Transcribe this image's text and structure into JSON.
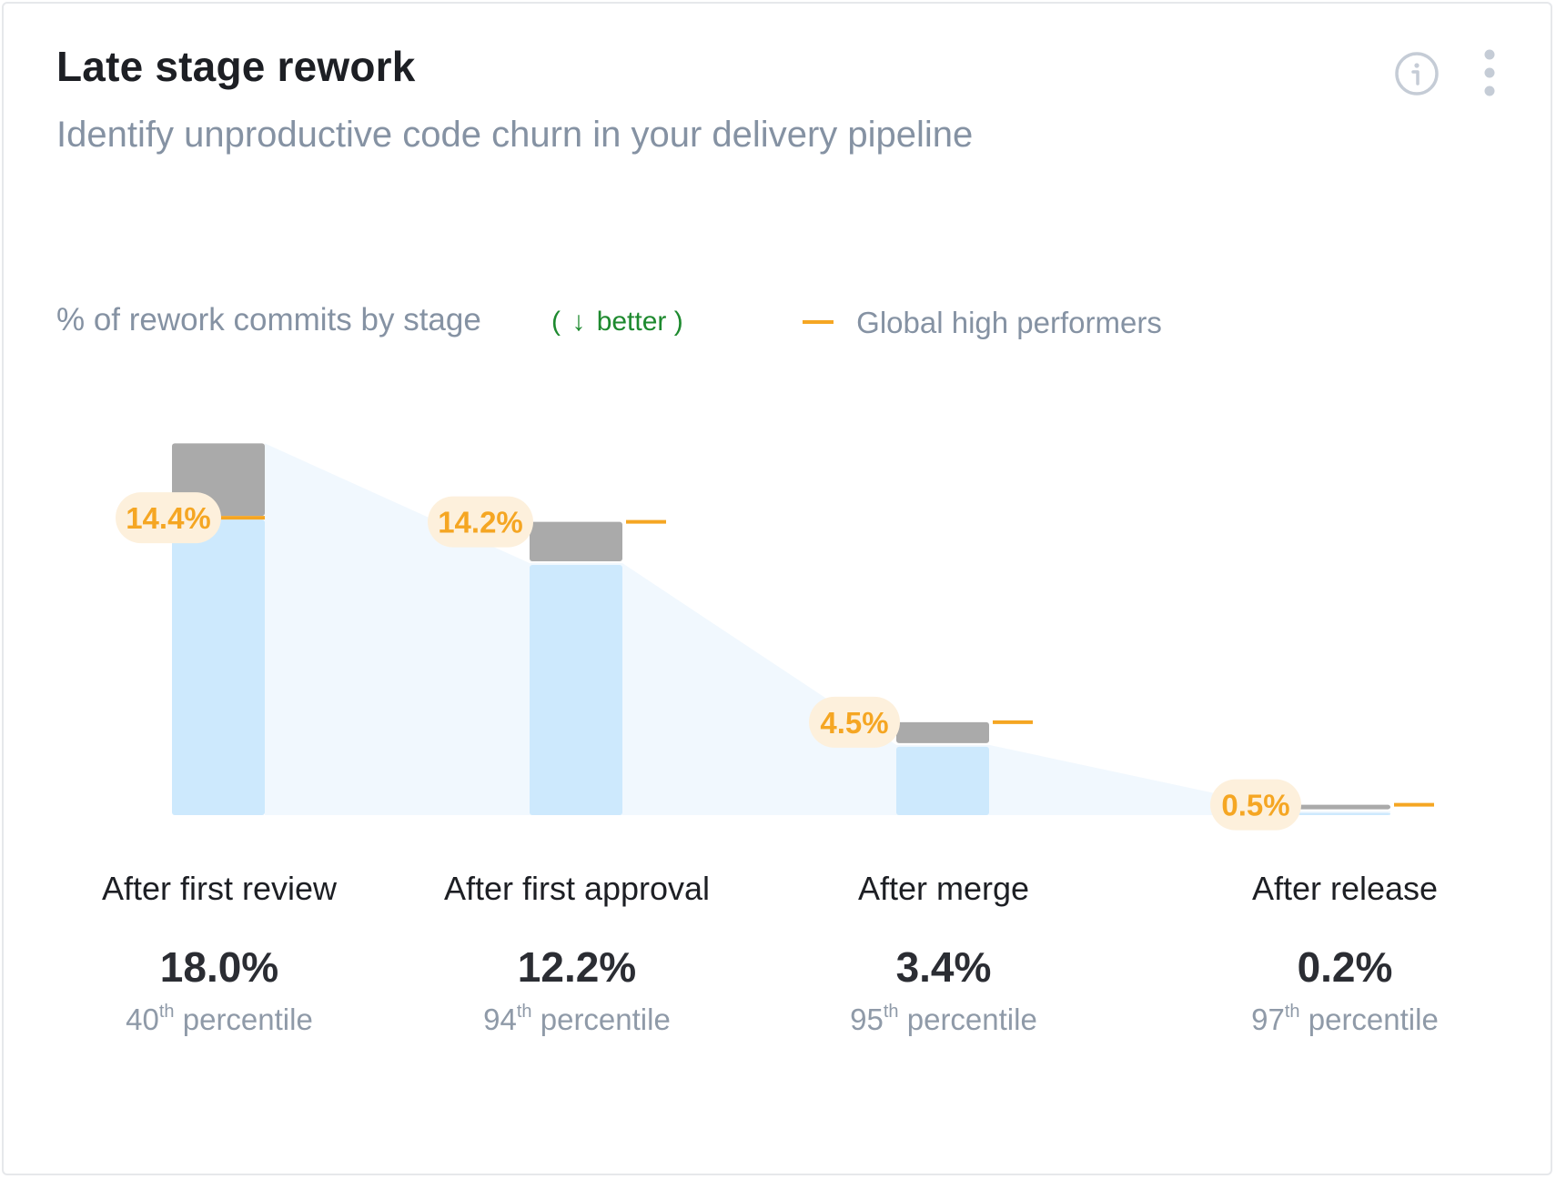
{
  "header": {
    "title": "Late stage rework",
    "subtitle": "Identify unproductive code churn in your delivery pipeline"
  },
  "icons": {
    "info": "info-circle-icon",
    "more": "more-vertical-icon"
  },
  "legend": {
    "metric_label": "% of rework commits by stage",
    "better_open": "(",
    "better_arrow": "↓",
    "better_text": "better",
    "better_close": ")",
    "benchmark_label": "Global high performers"
  },
  "colors": {
    "actual_bar": "#cde9fd",
    "gap_bar": "#aaaaaa",
    "benchmark": "#f5a623",
    "benchmark_pill": "#fdf0dc",
    "trend_fill": "#f1f8fe",
    "better": "#1e8a2f"
  },
  "chart_data": {
    "type": "bar",
    "categories": [
      "After first review",
      "After first approval",
      "After merge",
      "After release"
    ],
    "series": [
      {
        "values": [
          18.0,
          12.2,
          3.4,
          0.2
        ]
      },
      {
        "name": "Global high performers",
        "values": [
          14.4,
          14.2,
          4.5,
          0.5
        ]
      }
    ],
    "benchmark_labels": [
      "14.4%",
      "14.2%",
      "4.5%",
      "0.5%"
    ],
    "ylim": [
      0,
      20
    ]
  },
  "stages": [
    {
      "name": "After first review",
      "value": "18.0%",
      "pct_num": "40",
      "pct_sup": "th",
      "pct_word": "percentile"
    },
    {
      "name": "After first approval",
      "value": "12.2%",
      "pct_num": "94",
      "pct_sup": "th",
      "pct_word": "percentile"
    },
    {
      "name": "After merge",
      "value": "3.4%",
      "pct_num": "95",
      "pct_sup": "th",
      "pct_word": "percentile"
    },
    {
      "name": "After release",
      "value": "0.2%",
      "pct_num": "97",
      "pct_sup": "th",
      "pct_word": "percentile"
    }
  ]
}
